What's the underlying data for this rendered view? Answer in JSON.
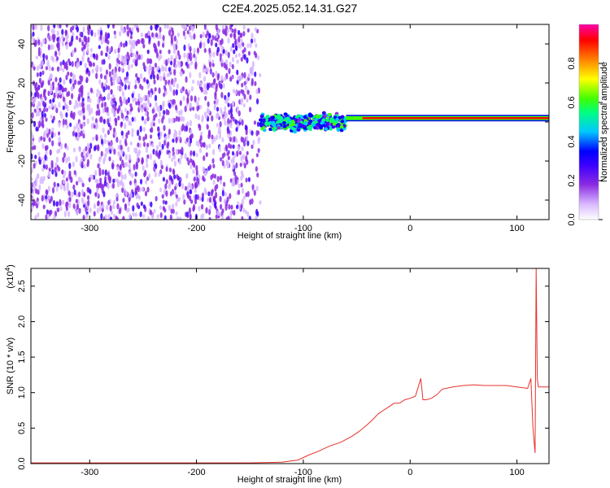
{
  "chart_data": [
    {
      "type": "heatmap",
      "title": "C2E4.2025.052.14.31.G27",
      "xlabel": "Height of straight line (km)",
      "ylabel": "Frequency (Hz)",
      "xlim": [
        -355,
        130
      ],
      "ylim": [
        -50,
        50
      ],
      "xticks": [
        -300,
        -200,
        -100,
        0,
        100
      ],
      "xtick_labels": [
        "-300",
        "-200",
        "-100",
        "0",
        "100"
      ],
      "yticks": [
        -40,
        -20,
        0,
        20,
        40
      ],
      "ytick_labels": [
        "-40",
        "-20",
        "0",
        "20",
        "40"
      ],
      "grid": false,
      "colorbar": {
        "label": "Normalized spectral amplitude",
        "range": [
          0,
          1
        ],
        "ticks": [
          0.0,
          0.2,
          0.4,
          0.6,
          0.8
        ],
        "tick_labels": [
          "0.0",
          "0.2",
          "0.4",
          "0.6",
          "0.8"
        ],
        "colormap": [
          "#ffffff",
          "#d8b8ff",
          "#8a2be2",
          "#3a00ff",
          "#0000ff",
          "#00c8ff",
          "#00ff80",
          "#40ff00",
          "#ffff00",
          "#ff8000",
          "#ff0000",
          "#ff00aa"
        ]
      },
      "regions": [
        {
          "x": [
            -355,
            -140
          ],
          "frequency_spread": [
            -50,
            50
          ],
          "amplitude": "low (0.05–0.2), noise"
        },
        {
          "x": [
            -140,
            -60
          ],
          "frequency_spread": [
            -5,
            5
          ],
          "amplitude": "0.2–0.6"
        },
        {
          "x": [
            -60,
            110
          ],
          "frequency_center": 2,
          "amplitude": "0.8–1.0"
        }
      ]
    },
    {
      "type": "line",
      "xlabel": "Height of straight line (km)",
      "ylabel": "SNR (10 * v/v)",
      "y_multiplier": "(x10",
      "y_multiplier_exp": "4",
      "y_multiplier_close": ")",
      "xlim": [
        -355,
        130
      ],
      "ylim": [
        0,
        2.75
      ],
      "xticks": [
        -300,
        -200,
        -100,
        0,
        100
      ],
      "xtick_labels": [
        "-300",
        "-200",
        "-100",
        "0",
        "100"
      ],
      "yticks": [
        0.0,
        0.5,
        1.0,
        1.5,
        2.0,
        2.5
      ],
      "ytick_labels": [
        "0.0",
        "0.5",
        "1.0",
        "1.5",
        "2.0",
        "2.5"
      ],
      "grid": false,
      "line_color": "#e8312a",
      "series": [
        {
          "x": [
            -355,
            -300,
            -250,
            -200,
            -150,
            -120,
            -105,
            -95,
            -85,
            -75,
            -65,
            -55,
            -48,
            -40,
            -35,
            -30,
            -25,
            -20,
            -15,
            -10,
            -5,
            0,
            5,
            10,
            12,
            15,
            20,
            25,
            30,
            40,
            50,
            60,
            70,
            80,
            90,
            100,
            105,
            110,
            113,
            115,
            117,
            118,
            119,
            120,
            125,
            130
          ],
          "y": [
            0.01,
            0.01,
            0.01,
            0.01,
            0.01,
            0.02,
            0.05,
            0.12,
            0.18,
            0.25,
            0.3,
            0.38,
            0.45,
            0.55,
            0.62,
            0.7,
            0.75,
            0.8,
            0.85,
            0.85,
            0.9,
            0.92,
            0.95,
            1.2,
            0.9,
            0.9,
            0.92,
            0.97,
            1.05,
            1.08,
            1.1,
            1.11,
            1.1,
            1.1,
            1.1,
            1.08,
            1.07,
            1.06,
            1.2,
            0.5,
            0.15,
            2.75,
            1.2,
            1.08,
            1.08,
            1.08
          ]
        }
      ]
    }
  ]
}
